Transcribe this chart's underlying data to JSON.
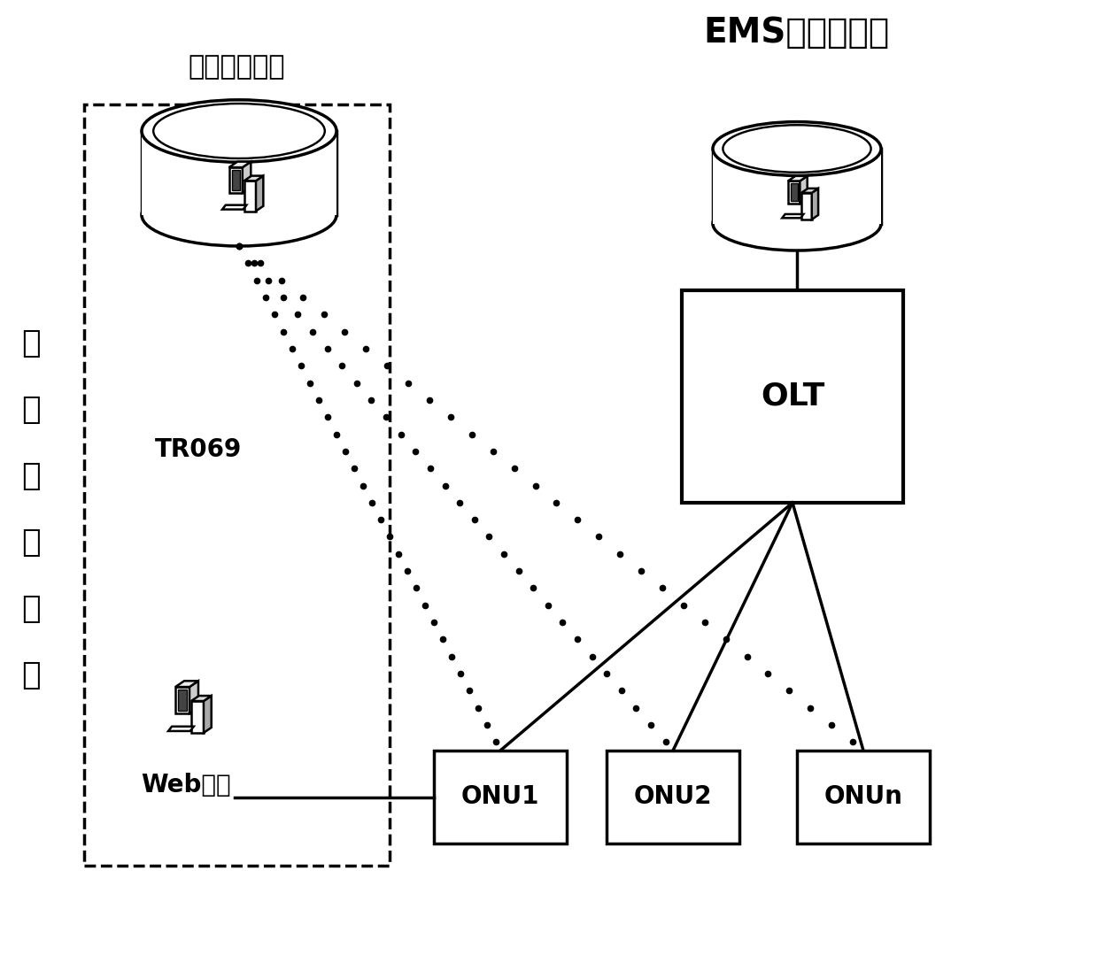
{
  "bg_color": "#ffffff",
  "left_box_label": "终端管理系统",
  "ems_label": "EMS网管服务器",
  "info_sys_label": "信\n息\n管\n理\n系\n统",
  "tr069_label": "TR069",
  "web_label": "Web网管",
  "olt_label": "OLT",
  "onu_labels": [
    "ONU1",
    "ONU2",
    "ONUn"
  ],
  "font_size_main": 22,
  "font_size_label": 18,
  "font_size_olt": 26,
  "font_size_onu": 20,
  "font_size_side": 26,
  "font_size_ems": 28,
  "font_size_tr069": 20,
  "font_size_web": 20
}
